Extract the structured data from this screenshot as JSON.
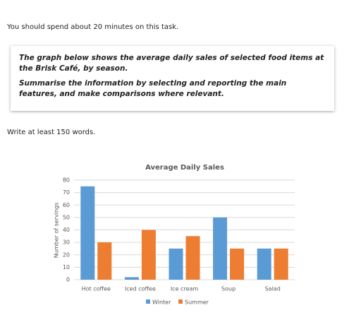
{
  "instruction": "You should spend about 20 minutes on this task.",
  "task": {
    "description": "The graph below shows the average daily sales of selected food items at the Brisk Café, by season.",
    "directive": "Summarise the information by selecting and reporting the main features, and make comparisons where relevant."
  },
  "prompt": "Write at least 150 words.",
  "chart_data": {
    "type": "bar",
    "title": "Average Daily Sales",
    "y_label": "Number of servings",
    "categories": [
      "Hot coffee",
      "Iced coffee",
      "Ice cream",
      "Soup",
      "Salad"
    ],
    "series": [
      {
        "name": "Winter",
        "color": "#5b9bd5",
        "values": [
          75,
          2,
          25,
          50,
          25
        ]
      },
      {
        "name": "Summer",
        "color": "#ed7d31",
        "values": [
          30,
          40,
          35,
          25,
          25
        ]
      }
    ],
    "ylim": [
      0,
      80
    ],
    "yticks": [
      0,
      10,
      20,
      30,
      40,
      50,
      60,
      70,
      80
    ],
    "grid": true,
    "legend": "bottom"
  }
}
